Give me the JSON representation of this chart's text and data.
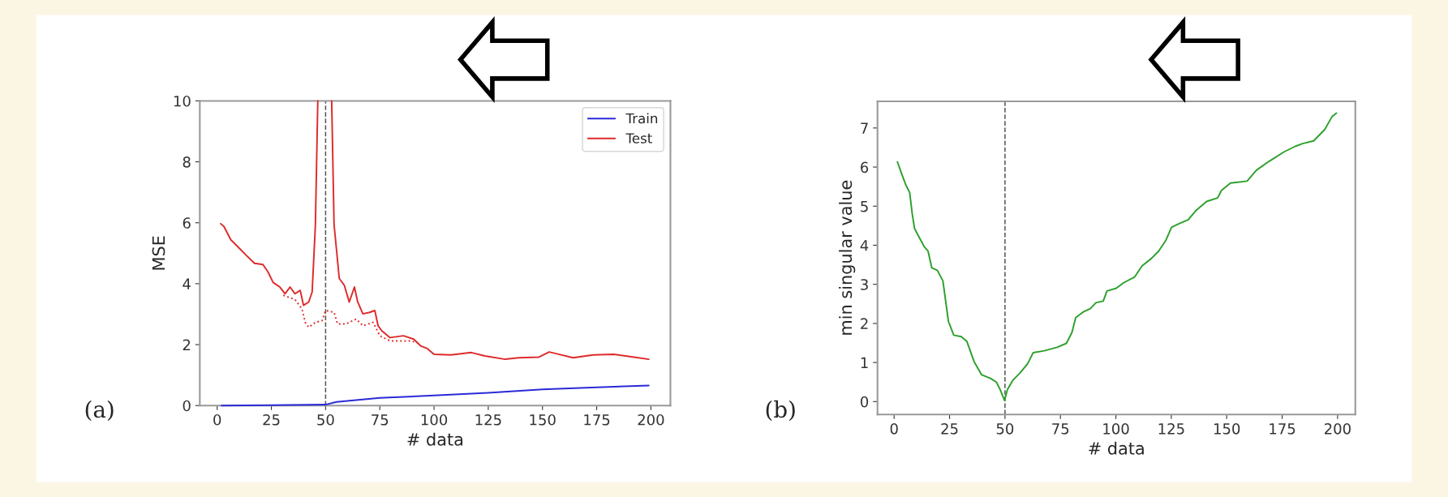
{
  "chart_data": [
    {
      "type": "line",
      "xlabel": "# data",
      "ylabel": "MSE",
      "xlim": [
        -8,
        209
      ],
      "ylim": [
        0,
        10
      ],
      "xticks": [
        0,
        25,
        50,
        75,
        100,
        125,
        150,
        175,
        200
      ],
      "yticks": [
        0,
        2,
        4,
        6,
        8,
        10
      ],
      "grid": false,
      "legend": "top right",
      "annotations": [
        "(a)"
      ],
      "ref_lines": [
        {
          "axis": "x",
          "value": 50,
          "color": "#555555",
          "line_style": "dashed"
        }
      ],
      "series": [
        {
          "name": "Train",
          "color": "#2a2ad8",
          "line_style": "solid",
          "x": [
            2,
            25,
            50,
            55,
            75,
            100,
            125,
            150,
            175,
            199
          ],
          "values": [
            0.0,
            0.01,
            0.03,
            0.12,
            0.25,
            0.33,
            0.42,
            0.53,
            0.6,
            0.66
          ]
        },
        {
          "name": "Test",
          "color": "#de2a2a",
          "line_style": "solid",
          "x": [
            1.6,
            3.1,
            6.3,
            9.4,
            13.3,
            17.2,
            21.1,
            23.4,
            25.8,
            28.9,
            31.3,
            33.6,
            35.9,
            38.3,
            39.8,
            42.2,
            43.8,
            45.3,
            46.4,
            50,
            52.8,
            53.9,
            56.3,
            58.6,
            60.9,
            63.3,
            64.8,
            67.2,
            70.3,
            72.7,
            74.2,
            75.8,
            79.7,
            85.9,
            90.6,
            93.8,
            96.9,
            100,
            107.8,
            117.2,
            123.4,
            132.8,
            139.1,
            148.4,
            153.1,
            157.8,
            164.1,
            173.4,
            182.8,
            192.2,
            199
          ],
          "values": [
            5.97,
            5.88,
            5.44,
            5.22,
            4.94,
            4.67,
            4.63,
            4.39,
            4.04,
            3.89,
            3.67,
            3.89,
            3.67,
            3.78,
            3.29,
            3.4,
            3.73,
            5.94,
            10,
            null,
            10,
            5.94,
            4.17,
            3.95,
            3.4,
            3.89,
            3.4,
            3.01,
            3.06,
            3.12,
            2.62,
            2.46,
            2.23,
            2.29,
            2.18,
            1.96,
            1.87,
            1.68,
            1.66,
            1.74,
            1.63,
            1.52,
            1.57,
            1.59,
            1.76,
            1.68,
            1.57,
            1.66,
            1.68,
            1.59,
            1.52
          ]
        },
        {
          "color": "#de2a2a",
          "line_style": "dotted",
          "x": [
            30.5,
            35.9,
            39.1,
            40.6,
            42.2,
            45.3,
            48.4,
            50,
            53.9,
            55.5,
            59.4,
            64.1,
            67.2,
            71.9,
            75,
            79.7,
            89.1,
            92.2
          ],
          "values": [
            3.62,
            3.48,
            3.17,
            2.73,
            2.57,
            2.73,
            2.79,
            3.12,
            3.06,
            2.68,
            2.68,
            2.84,
            2.62,
            2.73,
            2.29,
            2.12,
            2.12,
            2.07
          ]
        }
      ]
    },
    {
      "type": "line",
      "xlabel": "# data",
      "ylabel": "min singular value",
      "xlim": [
        -7.5,
        208
      ],
      "ylim": [
        -0.33,
        7.68
      ],
      "xticks": [
        0,
        25,
        50,
        75,
        100,
        125,
        150,
        175,
        200
      ],
      "yticks": [
        0,
        1,
        2,
        3,
        4,
        5,
        6,
        7
      ],
      "grid": false,
      "annotations": [
        "(b)"
      ],
      "ref_lines": [
        {
          "axis": "x",
          "value": 50,
          "color": "#555555",
          "line_style": "dashed"
        }
      ],
      "series": [
        {
          "color": "#2ca02c",
          "line_style": "solid",
          "x": [
            1.5,
            3.7,
            5.3,
            7.0,
            8.2,
            9.2,
            12.0,
            13.6,
            15.3,
            17.0,
            19.5,
            22.0,
            24.5,
            26.9,
            30.3,
            32.8,
            36.1,
            39.4,
            43.6,
            46.1,
            47.8,
            49.8,
            51.1,
            53.6,
            56.9,
            60.2,
            62.7,
            67.7,
            73.5,
            77.7,
            80.2,
            81.9,
            85.2,
            88.5,
            91.0,
            94.3,
            96.0,
            100.2,
            103.5,
            108.5,
            111.8,
            116.0,
            119.3,
            122.6,
            125.1,
            128.5,
            132.6,
            136.0,
            140.9,
            145.9,
            147.6,
            151.7,
            159.2,
            163.4,
            169.2,
            175.9,
            180.9,
            184.2,
            189.2,
            194.2,
            197.5,
            199.5
          ],
          "values": [
            6.13,
            5.78,
            5.54,
            5.35,
            4.79,
            4.43,
            4.13,
            3.96,
            3.85,
            3.42,
            3.36,
            3.09,
            2.05,
            1.7,
            1.66,
            1.54,
            1.02,
            0.69,
            0.59,
            0.5,
            0.31,
            0.03,
            0.31,
            0.55,
            0.74,
            0.97,
            1.25,
            1.3,
            1.39,
            1.49,
            1.77,
            2.15,
            2.29,
            2.38,
            2.53,
            2.57,
            2.83,
            2.9,
            3.04,
            3.19,
            3.47,
            3.66,
            3.85,
            4.13,
            4.46,
            4.55,
            4.65,
            4.88,
            5.12,
            5.21,
            5.4,
            5.59,
            5.64,
            5.92,
            6.15,
            6.39,
            6.53,
            6.6,
            6.67,
            6.96,
            7.29,
            7.38
          ]
        }
      ]
    }
  ]
}
